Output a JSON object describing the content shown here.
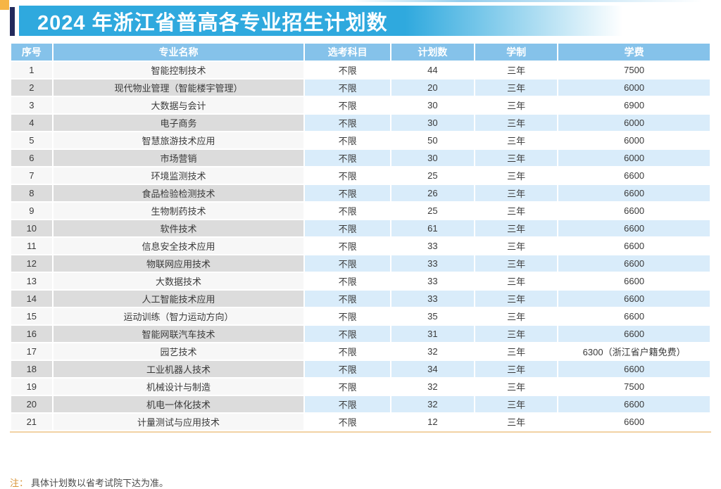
{
  "title": "2024 年浙江省普高各专业招生计划数",
  "table": {
    "headers": [
      "序号",
      "专业名称",
      "选考科目",
      "计划数",
      "学制",
      "学费"
    ],
    "rows": [
      [
        "1",
        "智能控制技术",
        "不限",
        "44",
        "三年",
        "7500"
      ],
      [
        "2",
        "现代物业管理（智能楼宇管理）",
        "不限",
        "20",
        "三年",
        "6000"
      ],
      [
        "3",
        "大数据与会计",
        "不限",
        "30",
        "三年",
        "6900"
      ],
      [
        "4",
        "电子商务",
        "不限",
        "30",
        "三年",
        "6000"
      ],
      [
        "5",
        "智慧旅游技术应用",
        "不限",
        "50",
        "三年",
        "6000"
      ],
      [
        "6",
        "市场营销",
        "不限",
        "30",
        "三年",
        "6000"
      ],
      [
        "7",
        "环境监测技术",
        "不限",
        "25",
        "三年",
        "6600"
      ],
      [
        "8",
        "食品检验检测技术",
        "不限",
        "26",
        "三年",
        "6600"
      ],
      [
        "9",
        "生物制药技术",
        "不限",
        "25",
        "三年",
        "6600"
      ],
      [
        "10",
        "软件技术",
        "不限",
        "61",
        "三年",
        "6600"
      ],
      [
        "11",
        "信息安全技术应用",
        "不限",
        "33",
        "三年",
        "6600"
      ],
      [
        "12",
        "物联网应用技术",
        "不限",
        "33",
        "三年",
        "6600"
      ],
      [
        "13",
        "大数据技术",
        "不限",
        "33",
        "三年",
        "6600"
      ],
      [
        "14",
        "人工智能技术应用",
        "不限",
        "33",
        "三年",
        "6600"
      ],
      [
        "15",
        "运动训练（智力运动方向）",
        "不限",
        "35",
        "三年",
        "6600"
      ],
      [
        "16",
        "智能网联汽车技术",
        "不限",
        "31",
        "三年",
        "6600"
      ],
      [
        "17",
        "园艺技术",
        "不限",
        "32",
        "三年",
        "6300（浙江省户籍免费）"
      ],
      [
        "18",
        "工业机器人技术",
        "不限",
        "34",
        "三年",
        "6600"
      ],
      [
        "19",
        "机械设计与制造",
        "不限",
        "32",
        "三年",
        "7500"
      ],
      [
        "20",
        "机电一体化技术",
        "不限",
        "32",
        "三年",
        "6600"
      ],
      [
        "21",
        "计量测试与应用技术",
        "不限",
        "12",
        "三年",
        "6600"
      ]
    ]
  },
  "note": {
    "label": "注：",
    "text": "具体计划数以省考试院下达为准。"
  },
  "colors": {
    "banner_blue": "#2FA9DE",
    "header_blue": "#85C2EA",
    "even_gray": "#DCDCDC",
    "even_blue": "#D9ECFA",
    "odd_gray": "#F7F7F7",
    "accent_navy": "#232A5C",
    "accent_orange": "#F6B545",
    "divider_tan": "#F2D2A4",
    "note_orange": "#D9953B"
  }
}
